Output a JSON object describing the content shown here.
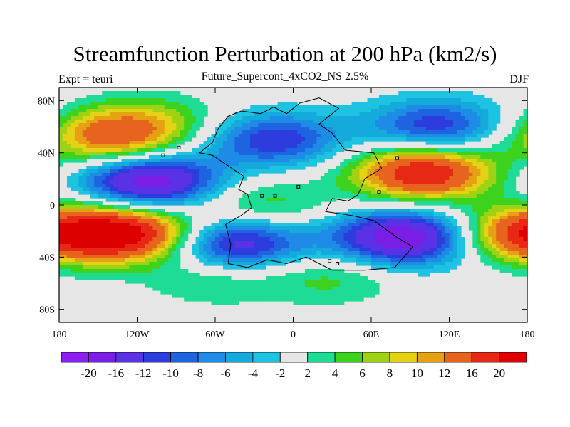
{
  "title": "Streamfunction Perturbation at 200 hPa (km2/s)",
  "left_subtitle": "Expt = teuri",
  "center_subtitle": "Future_Supercont_4xCO2_NS 2.5%",
  "right_subtitle": "DJF",
  "chart_data": {
    "type": "contour-map",
    "variable": "Streamfunction Perturbation at 200 hPa",
    "units": "km2/s",
    "season": "DJF",
    "experiment": "teuri",
    "lon_range": [
      -180,
      180
    ],
    "lat_range": [
      -90,
      90
    ],
    "x_ticks": [
      {
        "value": -180,
        "label": "180"
      },
      {
        "value": -120,
        "label": "120W"
      },
      {
        "value": -60,
        "label": "60W"
      },
      {
        "value": 0,
        "label": "0"
      },
      {
        "value": 60,
        "label": "60E"
      },
      {
        "value": 120,
        "label": "120E"
      },
      {
        "value": 180,
        "label": "180"
      }
    ],
    "y_ticks": [
      {
        "value": 80,
        "label": "80N"
      },
      {
        "value": 40,
        "label": "40N"
      },
      {
        "value": 0,
        "label": "0"
      },
      {
        "value": -40,
        "label": "40S"
      },
      {
        "value": -80,
        "label": "80S"
      }
    ],
    "contour_levels": [
      -20,
      -16,
      -12,
      -10,
      -8,
      -6,
      -4,
      -2,
      2,
      4,
      6,
      8,
      10,
      12,
      16,
      20
    ],
    "colorbar_labels": [
      "-20",
      "-16",
      "-12",
      "-10",
      "-8",
      "-6",
      "-4",
      "-2",
      "2",
      "4",
      "6",
      "8",
      "10",
      "12",
      "16",
      "20"
    ],
    "colors": [
      "#8c1ef0",
      "#7a1ee6",
      "#5a32e6",
      "#2d3cdc",
      "#1e64e1",
      "#1e8ce6",
      "#14aadc",
      "#1ec3e1",
      "#e6e6e6",
      "#1edc96",
      "#3cd21e",
      "#a0d214",
      "#e6d214",
      "#e6a014",
      "#e6641e",
      "#e62814",
      "#dc0000"
    ],
    "features": [
      {
        "center": [
          -140,
          52
        ],
        "peak": 14
      },
      {
        "center": [
          -110,
          18
        ],
        "peak": -19
      },
      {
        "center": [
          -125,
          -22
        ],
        "peak": 20
      },
      {
        "center": [
          -15,
          50
        ],
        "peak": -12
      },
      {
        "center": [
          110,
          60
        ],
        "peak": -12
      },
      {
        "center": [
          100,
          25
        ],
        "peak": 20
      },
      {
        "center": [
          85,
          -25
        ],
        "peak": -20
      },
      {
        "center": [
          -45,
          -30
        ],
        "peak": -16
      },
      {
        "center": [
          -60,
          -55
        ],
        "peak": 5
      },
      {
        "center": [
          -25,
          0
        ],
        "peak": 6
      },
      {
        "center": [
          -105,
          65
        ],
        "peak": 5
      },
      {
        "center": [
          178,
          -22
        ],
        "peak": 16
      },
      {
        "center": [
          30,
          -55
        ],
        "peak": 5
      }
    ]
  }
}
